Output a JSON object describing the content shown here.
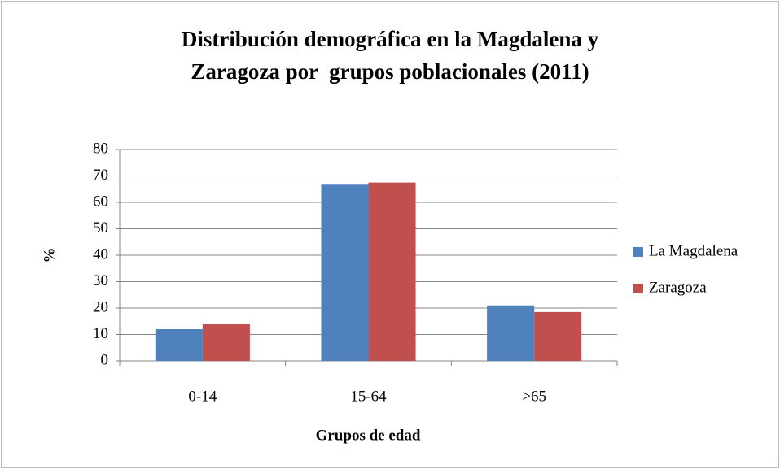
{
  "chart_data": {
    "type": "bar",
    "title": "Distribución demográfica en la Magdalena y\nZaragoza por  grupos poblacionales (2011)",
    "x_label": "Grupos de edad",
    "y_label": "%",
    "categories": [
      "0-14",
      "15-64",
      ">65"
    ],
    "series": [
      {
        "name": "La Magdalena",
        "color": "#4f81bd",
        "values": [
          12,
          67,
          21
        ]
      },
      {
        "name": "Zaragoza",
        "color": "#c0504d",
        "values": [
          14,
          67.5,
          18.5
        ]
      }
    ],
    "ylim": [
      0,
      80
    ],
    "yticks": [
      0,
      10,
      20,
      30,
      40,
      50,
      60,
      70,
      80
    ],
    "grid": true,
    "legend": "right"
  }
}
